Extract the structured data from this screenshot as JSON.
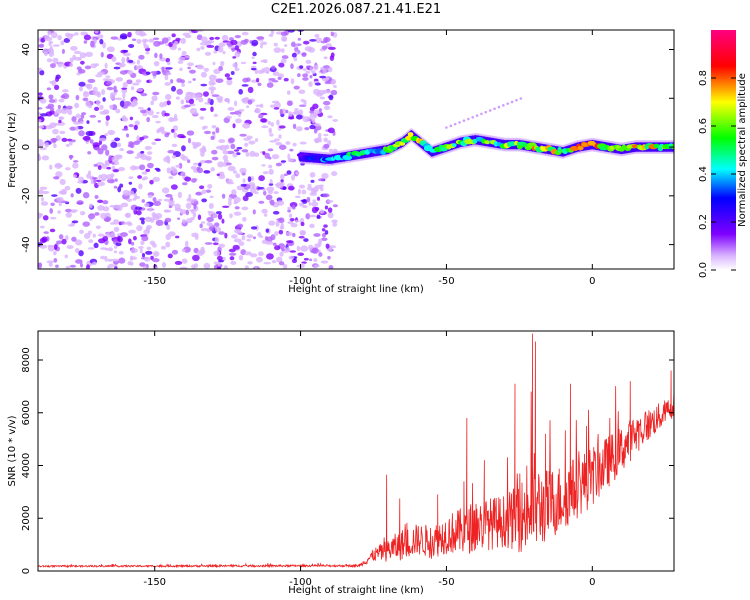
{
  "title": "C2E1.2026.087.21.41.E21",
  "chart_data": [
    {
      "type": "heatmap",
      "xlabel": "Height of straight line (km)",
      "ylabel": "Frequency (Hz)",
      "xlim": [
        -190,
        28
      ],
      "ylim": [
        -50,
        48
      ],
      "xticks": [
        -150,
        -100,
        -50,
        0
      ],
      "yticks": [
        -40,
        -20,
        0,
        20,
        40
      ],
      "xtick_labels": [
        "-150",
        "-100",
        "-50",
        "0"
      ],
      "ytick_labels": [
        "-40",
        "-20",
        "0",
        "20",
        "40"
      ],
      "colorbar": {
        "label": "Normalized spectral amplitude",
        "range": [
          0,
          1
        ],
        "ticks": [
          0.0,
          0.2,
          0.4,
          0.6,
          0.8
        ],
        "tick_labels": [
          "0.0",
          "0.2",
          "0.4",
          "0.6",
          "0.8"
        ],
        "colormap": [
          "#ffffff",
          "#cc99ff",
          "#7f00ff",
          "#0000ff",
          "#00ffff",
          "#00ff00",
          "#ffff00",
          "#ff0000",
          "#ff00ff"
        ]
      },
      "noise_region_x": [
        -190,
        -88
      ],
      "signal_track": {
        "x": [
          -100,
          -90,
          -80,
          -70,
          -65,
          -62,
          -58,
          -55,
          -50,
          -45,
          -40,
          -35,
          -30,
          -25,
          -20,
          -15,
          -10,
          -5,
          0,
          5,
          10,
          15,
          20,
          28
        ],
        "y": [
          -4,
          -5,
          -3,
          -1,
          2,
          5,
          1,
          -2,
          0,
          2,
          3,
          2,
          1,
          1,
          0,
          -1,
          -2,
          0,
          1,
          0,
          -1,
          0,
          0,
          0
        ],
        "peak_amplitude": [
          0.25,
          0.45,
          0.55,
          0.6,
          0.75,
          0.85,
          0.7,
          0.6,
          0.7,
          0.65,
          0.7,
          0.65,
          0.7,
          0.75,
          0.8,
          0.85,
          0.75,
          0.9,
          0.95,
          0.8,
          0.85,
          0.9,
          0.8,
          0.7
        ]
      }
    },
    {
      "type": "line",
      "xlabel": "Height of straight line (km)",
      "ylabel": "SNR (10 * v/v)",
      "xlim": [
        -190,
        28
      ],
      "ylim": [
        0,
        9100
      ],
      "xticks": [
        -150,
        -100,
        -50,
        0
      ],
      "yticks": [
        0,
        2000,
        4000,
        6000,
        8000
      ],
      "xtick_labels": [
        "-150",
        "-100",
        "-50",
        "0"
      ],
      "ytick_labels": [
        "0",
        "2000",
        "4000",
        "6000",
        "8000"
      ],
      "series_color": "#ee2222",
      "envelope": {
        "x": [
          -190,
          -80,
          -75,
          -70,
          -65,
          -60,
          -55,
          -50,
          -45,
          -40,
          -35,
          -30,
          -25,
          -22,
          -20,
          -18,
          -15,
          -10,
          -5,
          0,
          5,
          10,
          15,
          20,
          25,
          28
        ],
        "y": [
          180,
          200,
          600,
          800,
          1000,
          1200,
          1100,
          1400,
          1500,
          1700,
          1800,
          1900,
          2000,
          2300,
          2600,
          2400,
          2500,
          2800,
          3200,
          3600,
          4100,
          4600,
          5200,
          5600,
          6000,
          6300
        ],
        "amp": [
          60,
          80,
          500,
          900,
          1200,
          1200,
          1300,
          1500,
          1800,
          2000,
          2000,
          2000,
          2600,
          3500,
          4000,
          3000,
          2800,
          2600,
          2400,
          2300,
          2000,
          1800,
          1500,
          1200,
          1000,
          900
        ]
      },
      "spikes": [
        {
          "x": -70.5,
          "y": 3650
        },
        {
          "x": -66,
          "y": 2750
        },
        {
          "x": -53,
          "y": 2900
        },
        {
          "x": -44,
          "y": 3400
        },
        {
          "x": -43,
          "y": 5800
        },
        {
          "x": -37,
          "y": 4200
        },
        {
          "x": -26.5,
          "y": 7100
        },
        {
          "x": -20.5,
          "y": 9000
        },
        {
          "x": -19.5,
          "y": 8700
        },
        {
          "x": -16,
          "y": 5200
        },
        {
          "x": -7.5,
          "y": 7100
        },
        {
          "x": -2,
          "y": 5500
        },
        {
          "x": 6,
          "y": 5800
        },
        {
          "x": 13,
          "y": 7200
        },
        {
          "x": 27,
          "y": 7600
        }
      ]
    }
  ]
}
